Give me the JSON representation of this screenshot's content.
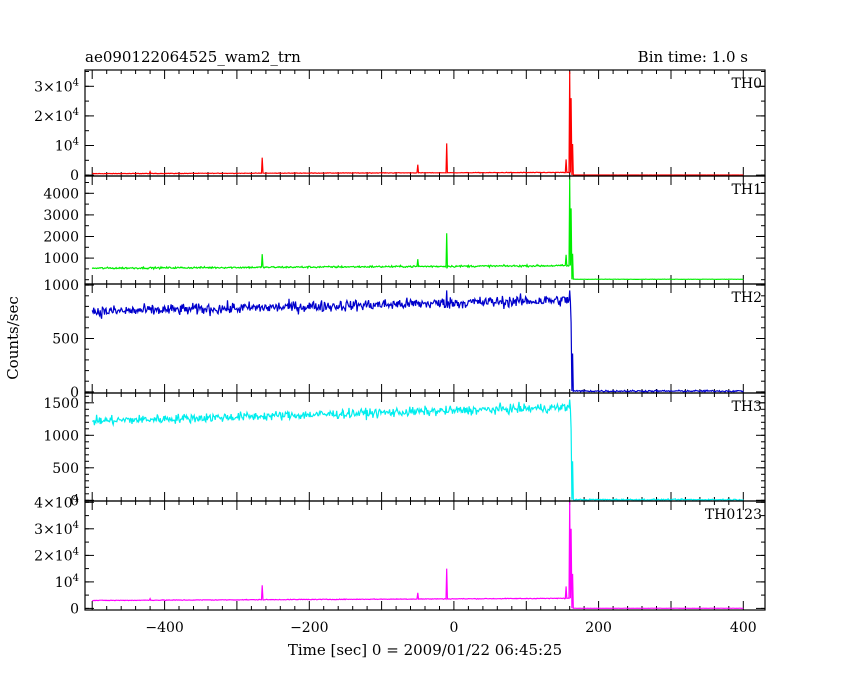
{
  "chart_data": {
    "type": "line",
    "title": "ae090122064525_wam2_trn",
    "bin_label": "Bin time: 1.0 s",
    "xlabel": "Time [sec] 0 = 2009/01/22 06:45:25",
    "ylabel": "Counts/sec",
    "xlim": [
      -510,
      430
    ],
    "x_ticks": [
      -400,
      -200,
      0,
      200,
      400
    ],
    "x_data_range": [
      -500,
      400
    ],
    "trigger_time": 162,
    "panels": [
      {
        "name": "TH0",
        "color": "#ff0000",
        "ylim": [
          -300,
          35500
        ],
        "y_ticks": [
          {
            "v": 0,
            "l": "0"
          },
          {
            "v": 10000,
            "l": "10^4"
          },
          {
            "v": 20000,
            "l": "2×10^4"
          },
          {
            "v": 30000,
            "l": "3×10^4"
          }
        ],
        "minor_step": 5000,
        "baseline_start": 500,
        "baseline_end": 900,
        "noise": 60,
        "post_level": 30,
        "spikes": [
          {
            "t": -420,
            "v": 1200
          },
          {
            "t": -265,
            "v": 5900
          },
          {
            "t": -50,
            "v": 3500
          },
          {
            "t": -10,
            "v": 10700
          },
          {
            "t": 155,
            "v": 5300
          },
          {
            "t": 160,
            "v": 35000
          },
          {
            "t": 162,
            "v": 26000
          },
          {
            "t": 164,
            "v": 10500
          }
        ]
      },
      {
        "name": "TH1",
        "color": "#00ee00",
        "ylim": [
          -200,
          4800
        ],
        "y_ticks": [
          {
            "v": 1000,
            "l": "1000"
          },
          {
            "v": 2000,
            "l": "2000"
          },
          {
            "v": 3000,
            "l": "3000"
          },
          {
            "v": 4000,
            "l": "4000"
          }
        ],
        "minor_step": 500,
        "baseline_start": 530,
        "baseline_end": 650,
        "noise": 30,
        "post_level": 20,
        "spikes": [
          {
            "t": -265,
            "v": 1180
          },
          {
            "t": -50,
            "v": 950
          },
          {
            "t": -10,
            "v": 2150
          },
          {
            "t": 155,
            "v": 1150
          },
          {
            "t": 160,
            "v": 4650
          },
          {
            "t": 162,
            "v": 3300
          },
          {
            "t": 164,
            "v": 1200
          }
        ]
      },
      {
        "name": "TH2",
        "color": "#0000cc",
        "ylim": [
          -10,
          1010
        ],
        "y_ticks": [
          {
            "v": 0,
            "l": "0"
          },
          {
            "v": 500,
            "l": "500"
          },
          {
            "v": 1000,
            "l": "1000"
          }
        ],
        "minor_step": 100,
        "baseline_start": 750,
        "baseline_end": 860,
        "noise": 38,
        "post_level": 8,
        "spikes": [
          {
            "t": -10,
            "v": 950
          },
          {
            "t": 160,
            "v": 950
          },
          {
            "t": 162,
            "v": 650
          },
          {
            "t": 164,
            "v": 360
          }
        ]
      },
      {
        "name": "TH3",
        "color": "#00eeee",
        "ylim": [
          -10,
          1650
        ],
        "y_ticks": [
          {
            "v": 0,
            "l": "0"
          },
          {
            "v": 500,
            "l": "500"
          },
          {
            "v": 1000,
            "l": "1000"
          },
          {
            "v": 1500,
            "l": "1500"
          }
        ],
        "minor_step": 100,
        "baseline_start": 1220,
        "baseline_end": 1430,
        "noise": 50,
        "post_level": 10,
        "spikes": [
          {
            "t": 160,
            "v": 1550
          },
          {
            "t": 162,
            "v": 1100
          },
          {
            "t": 164,
            "v": 600
          }
        ]
      },
      {
        "name": "TH0123",
        "color": "#ff00ff",
        "ylim": [
          -600,
          40500
        ],
        "y_ticks": [
          {
            "v": 0,
            "l": "0"
          },
          {
            "v": 10000,
            "l": "10^4"
          },
          {
            "v": 20000,
            "l": "2×10^4"
          },
          {
            "v": 30000,
            "l": "3×10^4"
          },
          {
            "v": 40000,
            "l": "4×10^4"
          }
        ],
        "minor_step": 5000,
        "baseline_start": 3000,
        "baseline_end": 3800,
        "noise": 90,
        "post_level": 60,
        "spikes": [
          {
            "t": -420,
            "v": 3700
          },
          {
            "t": -265,
            "v": 8700
          },
          {
            "t": -50,
            "v": 5900
          },
          {
            "t": -10,
            "v": 15000
          },
          {
            "t": 155,
            "v": 8300
          },
          {
            "t": 160,
            "v": 40000
          },
          {
            "t": 162,
            "v": 30000
          },
          {
            "t": 164,
            "v": 13000
          }
        ]
      }
    ]
  }
}
